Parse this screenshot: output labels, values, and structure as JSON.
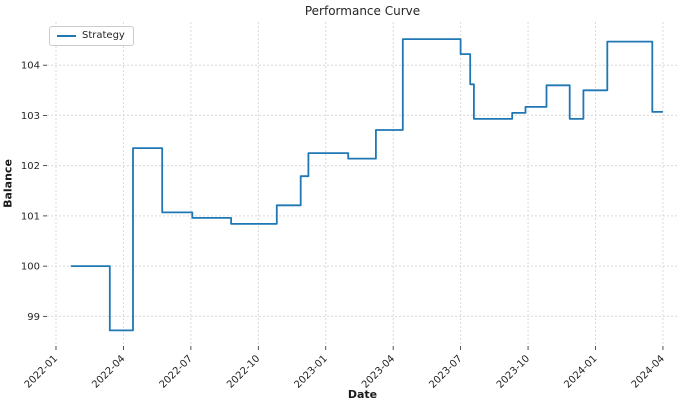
{
  "chart_data": {
    "type": "line",
    "subtype": "step-post",
    "title": "Performance Curve",
    "xlabel": "Date",
    "ylabel": "Balance",
    "legend_position": "upper left",
    "grid": "dashed",
    "line_color": "#1f77b4",
    "grid_color": "#d9d9d9",
    "tick_color": "#262626",
    "x_tick_labels": [
      "2022-01",
      "2022-04",
      "2022-07",
      "2022-10",
      "2023-01",
      "2023-04",
      "2023-07",
      "2023-10",
      "2024-01",
      "2024-04"
    ],
    "y_ticks": [
      99,
      100,
      101,
      102,
      103,
      104
    ],
    "xlim_months_from_2022_01": [
      -0.4,
      27.67
    ],
    "ylim": [
      98.41,
      104.86
    ],
    "series": [
      {
        "name": "Strategy",
        "color": "#1f77b4",
        "points": [
          [
            "2022-01-21",
            100.0
          ],
          [
            "2022-03-13",
            98.72
          ],
          [
            "2022-04-14",
            102.35
          ],
          [
            "2022-05-23",
            101.07
          ],
          [
            "2022-07-03",
            100.96
          ],
          [
            "2022-08-25",
            100.84
          ],
          [
            "2022-10-26",
            101.21
          ],
          [
            "2022-11-28",
            101.79
          ],
          [
            "2022-12-08",
            102.25
          ],
          [
            "2023-02-01",
            102.14
          ],
          [
            "2023-03-08",
            102.71
          ],
          [
            "2023-04-14",
            104.52
          ],
          [
            "2023-07-01",
            104.22
          ],
          [
            "2023-07-14",
            103.62
          ],
          [
            "2023-07-19",
            102.93
          ],
          [
            "2023-09-10",
            103.05
          ],
          [
            "2023-09-28",
            103.17
          ],
          [
            "2023-10-26",
            103.6
          ],
          [
            "2023-11-27",
            102.93
          ],
          [
            "2023-12-15",
            103.5
          ],
          [
            "2024-01-17",
            104.47
          ],
          [
            "2024-03-17",
            103.07
          ],
          [
            "2024-04-01",
            103.07
          ]
        ]
      }
    ]
  }
}
